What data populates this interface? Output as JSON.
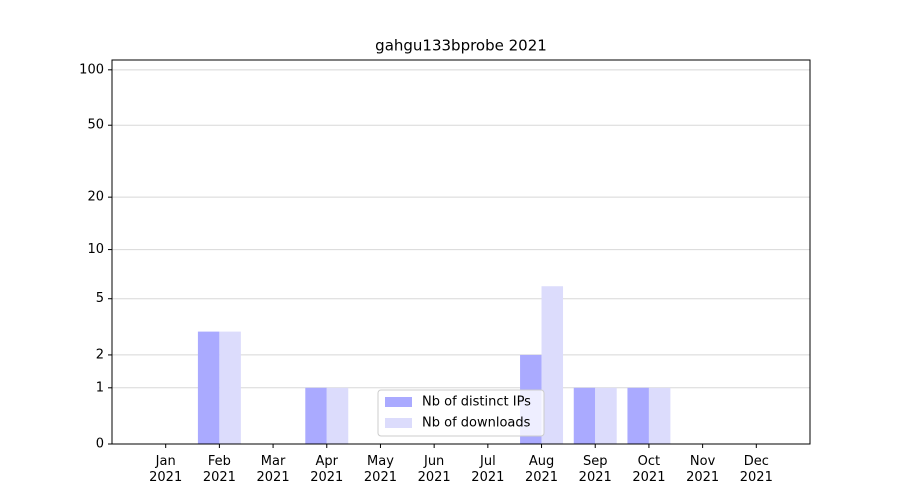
{
  "chart_data": {
    "type": "bar",
    "title": "gahgu133bprobe 2021",
    "categories": [
      "Jan 2021",
      "Feb 2021",
      "Mar 2021",
      "Apr 2021",
      "May 2021",
      "Jun 2021",
      "Jul 2021",
      "Aug 2021",
      "Sep 2021",
      "Oct 2021",
      "Nov 2021",
      "Dec 2021"
    ],
    "series": [
      {
        "name": "Nb of distinct IPs",
        "color": "#aaaaff",
        "values": [
          0,
          3,
          0,
          1,
          0,
          0,
          0,
          2,
          1,
          1,
          0,
          0
        ]
      },
      {
        "name": "Nb of downloads",
        "color": "#dcdcfc",
        "values": [
          0,
          3,
          0,
          1,
          0,
          0,
          0,
          6,
          1,
          1,
          0,
          0
        ]
      }
    ],
    "yscale": "log1p",
    "ylim": [
      0,
      113
    ],
    "yticks": [
      0,
      1,
      2,
      5,
      10,
      20,
      50,
      100
    ],
    "grid": true,
    "legend": "lower center"
  }
}
